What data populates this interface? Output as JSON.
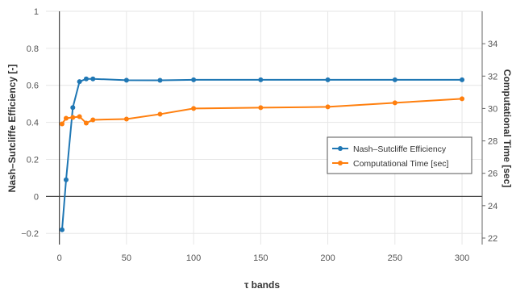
{
  "chart_data": {
    "type": "line",
    "xlabel": "τ bands",
    "ylabel_left": "Nash–Sutcliffe Efficiency [-]",
    "ylabel_right": "Computational Time [sec]",
    "xlim": [
      -10,
      315
    ],
    "ylim_left": [
      -0.26,
      1.0
    ],
    "ylim_right": [
      21.6,
      36.0
    ],
    "x_ticks": [
      0,
      50,
      100,
      150,
      200,
      250,
      300
    ],
    "y_left_ticks": [
      -0.2,
      0,
      0.2,
      0.4,
      0.6,
      0.8,
      1
    ],
    "y_right_ticks": [
      22,
      24,
      26,
      28,
      30,
      32,
      34
    ],
    "x_tick_labels": [
      "0",
      "50",
      "100",
      "150",
      "200",
      "250",
      "300"
    ],
    "y_left_tick_labels": [
      "−0.2",
      "0",
      "0.2",
      "0.4",
      "0.6",
      "0.8",
      "1"
    ],
    "y_right_tick_labels": [
      "22",
      "24",
      "26",
      "28",
      "30",
      "32",
      "34"
    ],
    "grid": true,
    "legend_position": "center-right",
    "series": [
      {
        "name": "Nash–Sutcliffe Efficiency",
        "axis": "left",
        "color": "#1f77b4",
        "x": [
          2,
          5,
          10,
          15,
          20,
          25,
          50,
          75,
          100,
          150,
          200,
          250,
          300
        ],
        "y": [
          -0.18,
          0.09,
          0.48,
          0.62,
          0.635,
          0.635,
          0.628,
          0.627,
          0.63,
          0.63,
          0.63,
          0.63,
          0.63
        ]
      },
      {
        "name": "Computational Time [sec]",
        "axis": "right",
        "color": "#ff7f0e",
        "x": [
          2,
          5,
          10,
          15,
          20,
          25,
          50,
          75,
          100,
          150,
          200,
          250,
          300
        ],
        "y": [
          29.05,
          29.4,
          29.45,
          29.5,
          29.1,
          29.3,
          29.35,
          29.65,
          30.0,
          30.05,
          30.1,
          30.35,
          30.6
        ]
      }
    ]
  }
}
